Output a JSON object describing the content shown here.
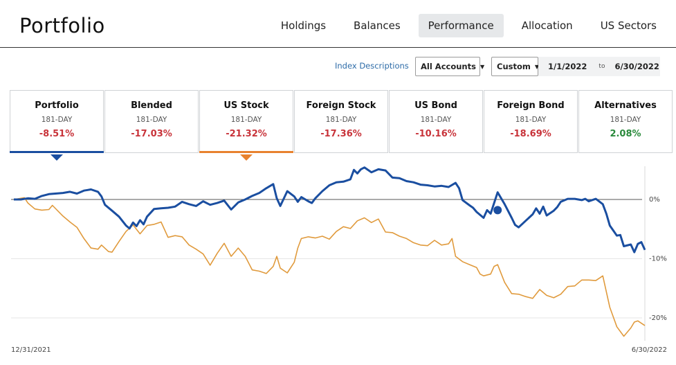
{
  "app": {
    "title": "Portfolio"
  },
  "nav": {
    "tabs": [
      {
        "label": "Holdings",
        "active": false
      },
      {
        "label": "Balances",
        "active": false
      },
      {
        "label": "Performance",
        "active": true
      },
      {
        "label": "Allocation",
        "active": false
      },
      {
        "label": "US Sectors",
        "active": false
      }
    ]
  },
  "controls": {
    "index_link": "Index Descriptions",
    "accounts_select": "All Accounts",
    "range_select": "Custom",
    "start_date": "1/1/2022",
    "to_label": "to",
    "end_date": "6/30/2022"
  },
  "cards": [
    {
      "name": "Portfolio",
      "period": "181-DAY",
      "value": "-8.51%",
      "sign": "neg",
      "selected_color": "#1a4ea0"
    },
    {
      "name": "Blended",
      "period": "181-DAY",
      "value": "-17.03%",
      "sign": "neg",
      "selected_color": ""
    },
    {
      "name": "US Stock",
      "period": "181-DAY",
      "value": "-21.32%",
      "sign": "neg",
      "selected_color": "#e8822e"
    },
    {
      "name": "Foreign Stock",
      "period": "181-DAY",
      "value": "-17.36%",
      "sign": "neg",
      "selected_color": ""
    },
    {
      "name": "US Bond",
      "period": "181-DAY",
      "value": "-10.16%",
      "sign": "neg",
      "selected_color": ""
    },
    {
      "name": "Foreign Bond",
      "period": "181-DAY",
      "value": "-18.69%",
      "sign": "neg",
      "selected_color": ""
    },
    {
      "name": "Alternatives",
      "period": "181-DAY",
      "value": "2.08%",
      "sign": "pos",
      "selected_color": ""
    }
  ],
  "chart_data": {
    "type": "line",
    "xlabel_start": "12/31/2021",
    "xlabel_end": "6/30/2022",
    "yticks": [
      {
        "value": 0,
        "label": "0%"
      },
      {
        "value": -10,
        "label": "-10%"
      },
      {
        "value": -20,
        "label": "-20%"
      }
    ],
    "ylim": [
      -24,
      6
    ],
    "n_days": 181,
    "series": [
      {
        "color": "#1a4ea0",
        "points": [
          [
            0,
            0
          ],
          [
            2,
            0
          ],
          [
            4,
            0.2
          ],
          [
            6,
            0.1
          ],
          [
            8,
            0.6
          ],
          [
            10,
            0.9
          ],
          [
            14,
            1.1
          ],
          [
            16,
            1.3
          ],
          [
            18,
            1.0
          ],
          [
            20,
            1.5
          ],
          [
            22,
            1.7
          ],
          [
            24,
            1.3
          ],
          [
            25,
            0.5
          ],
          [
            26,
            -0.9
          ],
          [
            28,
            -1.9
          ],
          [
            30,
            -2.9
          ],
          [
            32,
            -4.4
          ],
          [
            33,
            -4.9
          ],
          [
            34,
            -3.9
          ],
          [
            35,
            -4.5
          ],
          [
            36,
            -3.5
          ],
          [
            37,
            -4.2
          ],
          [
            38,
            -2.9
          ],
          [
            40,
            -1.6
          ],
          [
            42,
            -1.5
          ],
          [
            44,
            -1.4
          ],
          [
            46,
            -1.2
          ],
          [
            48,
            -0.4
          ],
          [
            50,
            -0.8
          ],
          [
            52,
            -1.1
          ],
          [
            54,
            -0.3
          ],
          [
            56,
            -0.9
          ],
          [
            58,
            -0.6
          ],
          [
            60,
            -0.2
          ],
          [
            62,
            -1.7
          ],
          [
            64,
            -0.5
          ],
          [
            66,
            0.0
          ],
          [
            68,
            0.6
          ],
          [
            70,
            1.1
          ],
          [
            72,
            1.9
          ],
          [
            74,
            2.6
          ],
          [
            75,
            0.2
          ],
          [
            76,
            -1.1
          ],
          [
            78,
            1.4
          ],
          [
            80,
            0.5
          ],
          [
            81,
            -0.4
          ],
          [
            82,
            0.4
          ],
          [
            84,
            -0.3
          ],
          [
            85,
            -0.6
          ],
          [
            86,
            0.2
          ],
          [
            88,
            1.4
          ],
          [
            90,
            2.4
          ],
          [
            92,
            2.9
          ],
          [
            94,
            3.0
          ],
          [
            96,
            3.4
          ],
          [
            97,
            5.0
          ],
          [
            98,
            4.4
          ],
          [
            99,
            5.1
          ],
          [
            100,
            5.4
          ],
          [
            102,
            4.6
          ],
          [
            104,
            5.1
          ],
          [
            106,
            4.9
          ],
          [
            108,
            3.7
          ],
          [
            110,
            3.6
          ],
          [
            112,
            3.1
          ],
          [
            114,
            2.9
          ],
          [
            116,
            2.5
          ],
          [
            118,
            2.4
          ],
          [
            120,
            2.2
          ],
          [
            122,
            2.3
          ],
          [
            124,
            2.1
          ],
          [
            126,
            2.8
          ],
          [
            127,
            1.9
          ],
          [
            128,
            -0.1
          ],
          [
            130,
            -1.0
          ],
          [
            131,
            -1.4
          ],
          [
            132,
            -2.1
          ],
          [
            134,
            -3.1
          ],
          [
            135,
            -1.8
          ],
          [
            136,
            -2.4
          ],
          [
            138,
            1.2
          ],
          [
            139,
            0.2
          ],
          [
            140,
            -0.8
          ],
          [
            142,
            -3.1
          ],
          [
            143,
            -4.3
          ],
          [
            144,
            -4.7
          ],
          [
            146,
            -3.6
          ],
          [
            148,
            -2.5
          ],
          [
            149,
            -1.5
          ],
          [
            150,
            -2.4
          ],
          [
            151,
            -1.2
          ],
          [
            152,
            -2.7
          ],
          [
            154,
            -1.9
          ],
          [
            155,
            -1.3
          ],
          [
            156,
            -0.4
          ],
          [
            158,
            0.1
          ],
          [
            160,
            0.1
          ],
          [
            162,
            -0.1
          ],
          [
            163,
            0.1
          ],
          [
            164,
            -0.3
          ],
          [
            166,
            0.1
          ],
          [
            168,
            -0.8
          ],
          [
            169,
            -2.4
          ],
          [
            170,
            -4.4
          ],
          [
            172,
            -6.1
          ],
          [
            173,
            -6.0
          ],
          [
            174,
            -7.9
          ],
          [
            176,
            -7.6
          ],
          [
            177,
            -8.9
          ],
          [
            178,
            -7.5
          ],
          [
            179,
            -7.2
          ],
          [
            180,
            -8.5
          ]
        ]
      },
      {
        "color": "#e09a3c",
        "points": [
          [
            0,
            0
          ],
          [
            3,
            0.3
          ],
          [
            4,
            -0.6
          ],
          [
            6,
            -1.6
          ],
          [
            8,
            -1.8
          ],
          [
            10,
            -1.7
          ],
          [
            11,
            -1.0
          ],
          [
            14,
            -2.8
          ],
          [
            16,
            -3.8
          ],
          [
            18,
            -4.7
          ],
          [
            20,
            -6.6
          ],
          [
            22,
            -8.2
          ],
          [
            24,
            -8.4
          ],
          [
            25,
            -7.7
          ],
          [
            27,
            -8.8
          ],
          [
            28,
            -8.9
          ],
          [
            30,
            -7.1
          ],
          [
            32,
            -5.4
          ],
          [
            34,
            -4.3
          ],
          [
            36,
            -5.8
          ],
          [
            38,
            -4.4
          ],
          [
            40,
            -4.2
          ],
          [
            42,
            -3.8
          ],
          [
            44,
            -6.4
          ],
          [
            46,
            -6.1
          ],
          [
            48,
            -6.3
          ],
          [
            50,
            -7.7
          ],
          [
            52,
            -8.4
          ],
          [
            54,
            -9.2
          ],
          [
            56,
            -11.1
          ],
          [
            58,
            -9.1
          ],
          [
            60,
            -7.4
          ],
          [
            62,
            -9.6
          ],
          [
            64,
            -8.2
          ],
          [
            66,
            -9.6
          ],
          [
            68,
            -11.9
          ],
          [
            70,
            -12.1
          ],
          [
            72,
            -12.5
          ],
          [
            74,
            -11.3
          ],
          [
            75,
            -9.6
          ],
          [
            76,
            -11.6
          ],
          [
            78,
            -12.4
          ],
          [
            80,
            -10.6
          ],
          [
            81,
            -8.2
          ],
          [
            82,
            -6.6
          ],
          [
            84,
            -6.3
          ],
          [
            86,
            -6.5
          ],
          [
            88,
            -6.2
          ],
          [
            90,
            -6.7
          ],
          [
            92,
            -5.4
          ],
          [
            94,
            -4.6
          ],
          [
            96,
            -4.9
          ],
          [
            98,
            -3.6
          ],
          [
            100,
            -3.1
          ],
          [
            101,
            -3.5
          ],
          [
            102,
            -3.9
          ],
          [
            104,
            -3.3
          ],
          [
            106,
            -5.5
          ],
          [
            108,
            -5.6
          ],
          [
            110,
            -6.2
          ],
          [
            112,
            -6.6
          ],
          [
            114,
            -7.3
          ],
          [
            116,
            -7.7
          ],
          [
            118,
            -7.8
          ],
          [
            120,
            -6.9
          ],
          [
            122,
            -7.7
          ],
          [
            124,
            -7.5
          ],
          [
            125,
            -6.6
          ],
          [
            126,
            -9.6
          ],
          [
            128,
            -10.5
          ],
          [
            130,
            -11.0
          ],
          [
            132,
            -11.5
          ],
          [
            133,
            -12.6
          ],
          [
            134,
            -12.9
          ],
          [
            136,
            -12.6
          ],
          [
            137,
            -11.3
          ],
          [
            138,
            -11.0
          ],
          [
            140,
            -14.0
          ],
          [
            142,
            -15.9
          ],
          [
            144,
            -16.0
          ],
          [
            146,
            -16.4
          ],
          [
            148,
            -16.7
          ],
          [
            150,
            -15.2
          ],
          [
            152,
            -16.2
          ],
          [
            154,
            -16.6
          ],
          [
            156,
            -16.0
          ],
          [
            158,
            -14.7
          ],
          [
            160,
            -14.6
          ],
          [
            162,
            -13.6
          ],
          [
            164,
            -13.6
          ],
          [
            166,
            -13.7
          ],
          [
            168,
            -12.9
          ],
          [
            170,
            -18.2
          ],
          [
            172,
            -21.5
          ],
          [
            174,
            -23.1
          ],
          [
            176,
            -21.7
          ],
          [
            177,
            -20.7
          ],
          [
            178,
            -20.5
          ],
          [
            180,
            -21.3
          ]
        ]
      }
    ],
    "marker": {
      "x": 138,
      "y": -1.8,
      "color": "#1a4ea0"
    }
  }
}
